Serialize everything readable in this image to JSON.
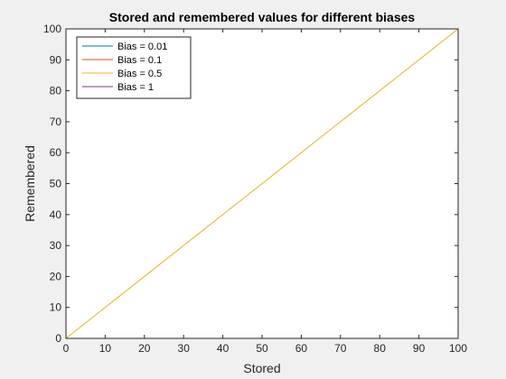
{
  "chart_data": {
    "type": "line",
    "title": "Stored and remembered values for different biases",
    "xlabel": "Stored",
    "ylabel": "Remembered",
    "xlim": [
      0,
      100
    ],
    "ylim": [
      0,
      100
    ],
    "xticks": [
      0,
      10,
      20,
      30,
      40,
      50,
      60,
      70,
      80,
      90,
      100
    ],
    "yticks": [
      0,
      10,
      20,
      30,
      40,
      50,
      60,
      70,
      80,
      90,
      100
    ],
    "grid": false,
    "legend_position": "top-left",
    "series": [
      {
        "name": "Bias = 0.01",
        "color": "#0072bd",
        "x": [
          0,
          15
        ],
        "y": [
          0,
          0
        ]
      },
      {
        "name": "Bias = 0.1",
        "color": "#d95319",
        "x": [
          0,
          15
        ],
        "y": [
          0,
          0
        ]
      },
      {
        "name": "Bias = 0.5",
        "color": "#edb120",
        "x": [
          0,
          100
        ],
        "y": [
          0,
          100
        ]
      },
      {
        "name": "Bias = 1",
        "color": "#7e2f8e",
        "x": [
          0,
          15
        ],
        "y": [
          0,
          0
        ]
      }
    ]
  }
}
